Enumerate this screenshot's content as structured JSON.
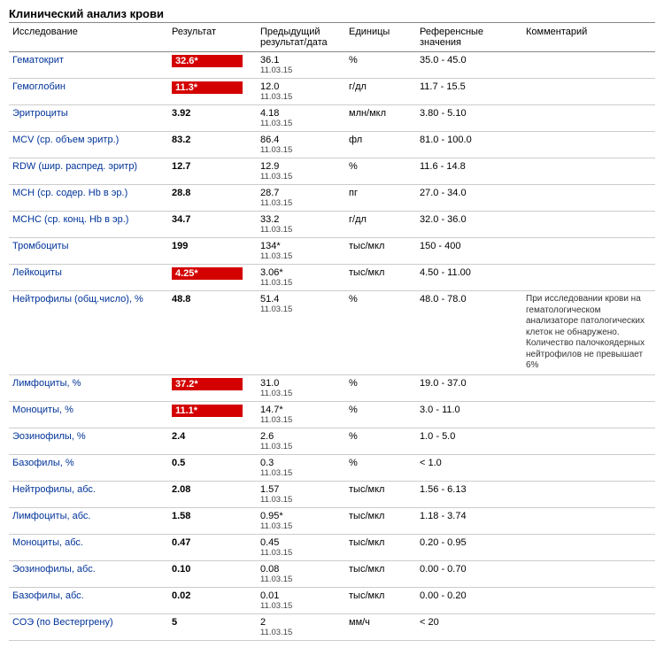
{
  "title": "Клинический анализ крови",
  "columns": {
    "test": "Исследование",
    "result": "Результат",
    "prev": "Предыдущий результат/дата",
    "unit": "Единицы",
    "ref": "Референсные значения",
    "comment": "Комментарий"
  },
  "colors": {
    "link": "#003399",
    "flag_bg": "#d40000",
    "flag_text": "#ffffff",
    "border_header": "#888888",
    "border_row": "#cccccc",
    "background": "#ffffff",
    "text": "#000000"
  },
  "prev_date": "11.03.15",
  "rows": [
    {
      "test": "Гематокрит",
      "result": "32.6*",
      "flagged": true,
      "prev": "36.1",
      "unit": "%",
      "ref": "35.0 - 45.0",
      "comment": ""
    },
    {
      "test": "Гемоглобин",
      "result": "11.3*",
      "flagged": true,
      "prev": "12.0",
      "unit": "г/дл",
      "ref": "11.7 - 15.5",
      "comment": ""
    },
    {
      "test": "Эритроциты",
      "result": "3.92",
      "flagged": false,
      "prev": "4.18",
      "unit": "млн/мкл",
      "ref": "3.80 - 5.10",
      "comment": ""
    },
    {
      "test": "MCV (ср. объем эритр.)",
      "result": "83.2",
      "flagged": false,
      "prev": "86.4",
      "unit": "фл",
      "ref": "81.0 - 100.0",
      "comment": ""
    },
    {
      "test": "RDW (шир. распред. эритр)",
      "result": "12.7",
      "flagged": false,
      "prev": "12.9",
      "unit": "%",
      "ref": "11.6 - 14.8",
      "comment": ""
    },
    {
      "test": "MCH (ср. содер. Hb в эр.)",
      "result": "28.8",
      "flagged": false,
      "prev": "28.7",
      "unit": "пг",
      "ref": "27.0 - 34.0",
      "comment": ""
    },
    {
      "test": "MCHC (ср. конц. Hb в эр.)",
      "result": "34.7",
      "flagged": false,
      "prev": "33.2",
      "unit": "г/дл",
      "ref": "32.0 - 36.0",
      "comment": ""
    },
    {
      "test": "Тромбоциты",
      "result": "199",
      "flagged": false,
      "prev": "134*",
      "unit": "тыс/мкл",
      "ref": "150 - 400",
      "comment": ""
    },
    {
      "test": "Лейкоциты",
      "result": "4.25*",
      "flagged": true,
      "prev": "3.06*",
      "unit": "тыс/мкл",
      "ref": "4.50 - 11.00",
      "comment": ""
    },
    {
      "test": "Нейтрофилы (общ.число), %",
      "result": "48.8",
      "flagged": false,
      "prev": "51.4",
      "unit": "%",
      "ref": "48.0 - 78.0",
      "comment": "При исследовании крови на гематологическом анализаторе патологических клеток не обнаружено. Количество палочкоядерных нейтрофилов не превышает 6%"
    },
    {
      "test": "Лимфоциты, %",
      "result": "37.2*",
      "flagged": true,
      "prev": "31.0",
      "unit": "%",
      "ref": "19.0 - 37.0",
      "comment": ""
    },
    {
      "test": "Моноциты, %",
      "result": "11.1*",
      "flagged": true,
      "prev": "14.7*",
      "unit": "%",
      "ref": "3.0 - 11.0",
      "comment": ""
    },
    {
      "test": "Эозинофилы, %",
      "result": "2.4",
      "flagged": false,
      "prev": "2.6",
      "unit": "%",
      "ref": "1.0 - 5.0",
      "comment": ""
    },
    {
      "test": "Базофилы, %",
      "result": "0.5",
      "flagged": false,
      "prev": "0.3",
      "unit": "%",
      "ref": "< 1.0",
      "comment": ""
    },
    {
      "test": "Нейтрофилы, абс.",
      "result": "2.08",
      "flagged": false,
      "prev": "1.57",
      "unit": "тыс/мкл",
      "ref": "1.56 - 6.13",
      "comment": ""
    },
    {
      "test": "Лимфоциты, абс.",
      "result": "1.58",
      "flagged": false,
      "prev": "0.95*",
      "unit": "тыс/мкл",
      "ref": "1.18 - 3.74",
      "comment": ""
    },
    {
      "test": "Моноциты, абс.",
      "result": "0.47",
      "flagged": false,
      "prev": "0.45",
      "unit": "тыс/мкл",
      "ref": "0.20 - 0.95",
      "comment": ""
    },
    {
      "test": "Эозинофилы, абс.",
      "result": "0.10",
      "flagged": false,
      "prev": "0.08",
      "unit": "тыс/мкл",
      "ref": "0.00 - 0.70",
      "comment": ""
    },
    {
      "test": "Базофилы, абс.",
      "result": "0.02",
      "flagged": false,
      "prev": "0.01",
      "unit": "тыс/мкл",
      "ref": "0.00 - 0.20",
      "comment": ""
    },
    {
      "test": "СОЭ (по Вестергрену)",
      "result": "5",
      "flagged": false,
      "prev": "2",
      "unit": "мм/ч",
      "ref": "< 20",
      "comment": ""
    }
  ]
}
